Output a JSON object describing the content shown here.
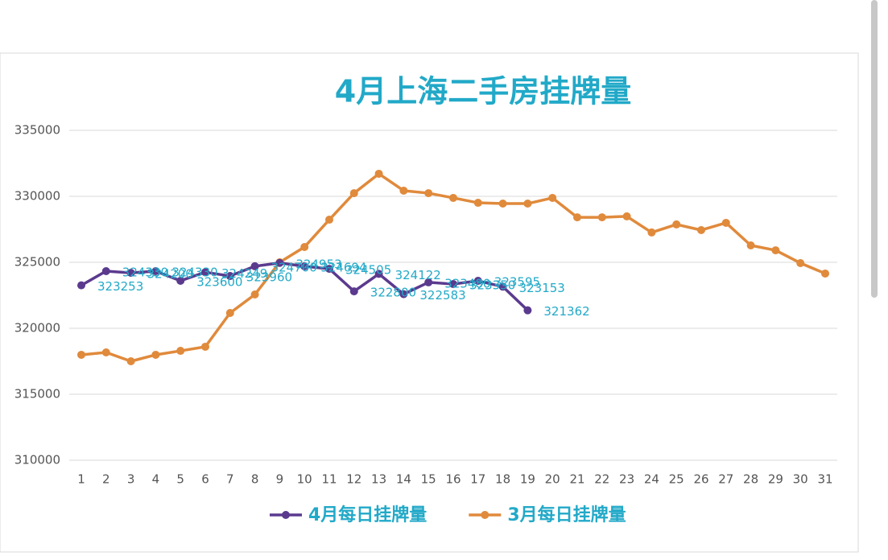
{
  "chart_data": {
    "type": "line",
    "title": "4月上海二手房挂牌量",
    "categories": [
      1,
      2,
      3,
      4,
      5,
      6,
      7,
      8,
      9,
      10,
      11,
      12,
      13,
      14,
      15,
      16,
      17,
      18,
      19,
      20,
      21,
      22,
      23,
      24,
      25,
      26,
      27,
      28,
      29,
      30,
      31
    ],
    "series": [
      {
        "name": "4月每日挂牌量",
        "color": "#5b3a8e",
        "values": [
          323253,
          324330,
          324200,
          324330,
          323600,
          324249,
          323960,
          324700,
          324953,
          324694,
          324505,
          322800,
          324122,
          322583,
          323480,
          323350,
          323595,
          323153,
          321362,
          null,
          null,
          null,
          null,
          null,
          null,
          null,
          null,
          null,
          null,
          null,
          null
        ]
      },
      {
        "name": "3月每日挂牌量",
        "color": "#e08a3c",
        "values": [
          317990,
          318170,
          317500,
          317990,
          318290,
          318600,
          321160,
          322560,
          325000,
          326160,
          328230,
          330240,
          331710,
          330430,
          330240,
          329880,
          329510,
          329450,
          329450,
          329880,
          328410,
          328410,
          328480,
          327260,
          327870,
          327440,
          327990,
          326280,
          325910,
          324940,
          324150
        ]
      }
    ],
    "ylim": [
      310000,
      335000
    ],
    "yticks": [
      310000,
      315000,
      320000,
      325000,
      330000,
      335000
    ],
    "grid": true,
    "legend": "bottom",
    "data_labels_series": 0
  }
}
